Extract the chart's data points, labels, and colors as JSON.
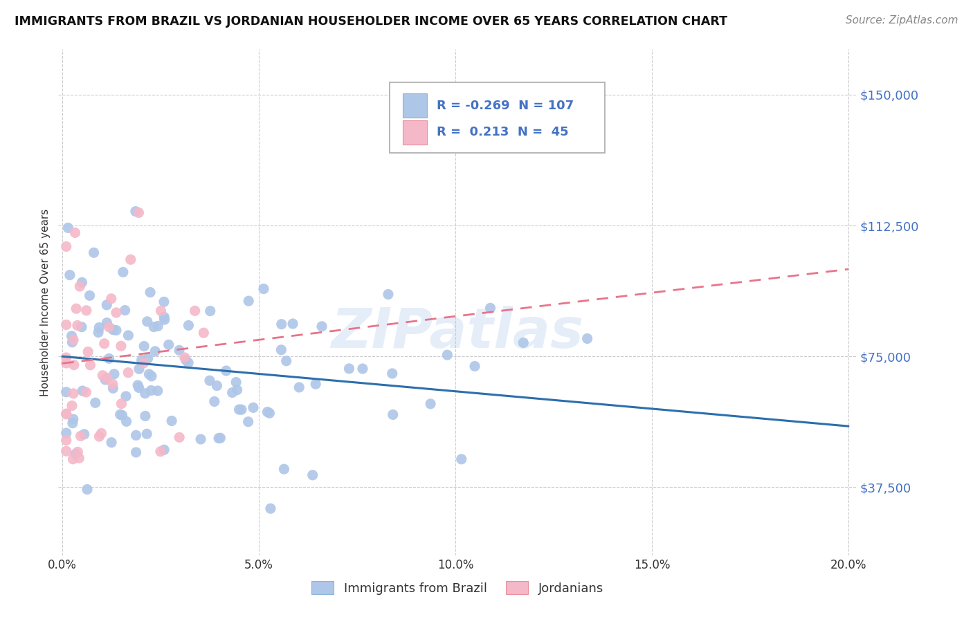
{
  "title": "IMMIGRANTS FROM BRAZIL VS JORDANIAN HOUSEHOLDER INCOME OVER 65 YEARS CORRELATION CHART",
  "source": "Source: ZipAtlas.com",
  "ylabel": "Householder Income Over 65 years",
  "xlim": [
    -0.001,
    0.202
  ],
  "ylim": [
    18000,
    163000
  ],
  "yticks": [
    37500,
    75000,
    112500,
    150000
  ],
  "ytick_labels": [
    "$37,500",
    "$75,000",
    "$112,500",
    "$150,000"
  ],
  "xticks": [
    0.0,
    0.05,
    0.1,
    0.15,
    0.2
  ],
  "xtick_labels": [
    "0.0%",
    "5.0%",
    "10.0%",
    "15.0%",
    "20.0%"
  ],
  "blue_color": "#aec6e8",
  "pink_color": "#f4b8c8",
  "blue_line_color": "#2c6fad",
  "pink_line_color": "#e8748a",
  "r_blue": -0.269,
  "n_blue": 107,
  "r_pink": 0.213,
  "n_pink": 45,
  "watermark": "ZIPatlas",
  "blue_line_x0": 0.0,
  "blue_line_y0": 75000,
  "blue_line_x1": 0.2,
  "blue_line_y1": 55000,
  "pink_line_x0": 0.0,
  "pink_line_y0": 73000,
  "pink_line_x1": 0.2,
  "pink_line_y1": 100000
}
